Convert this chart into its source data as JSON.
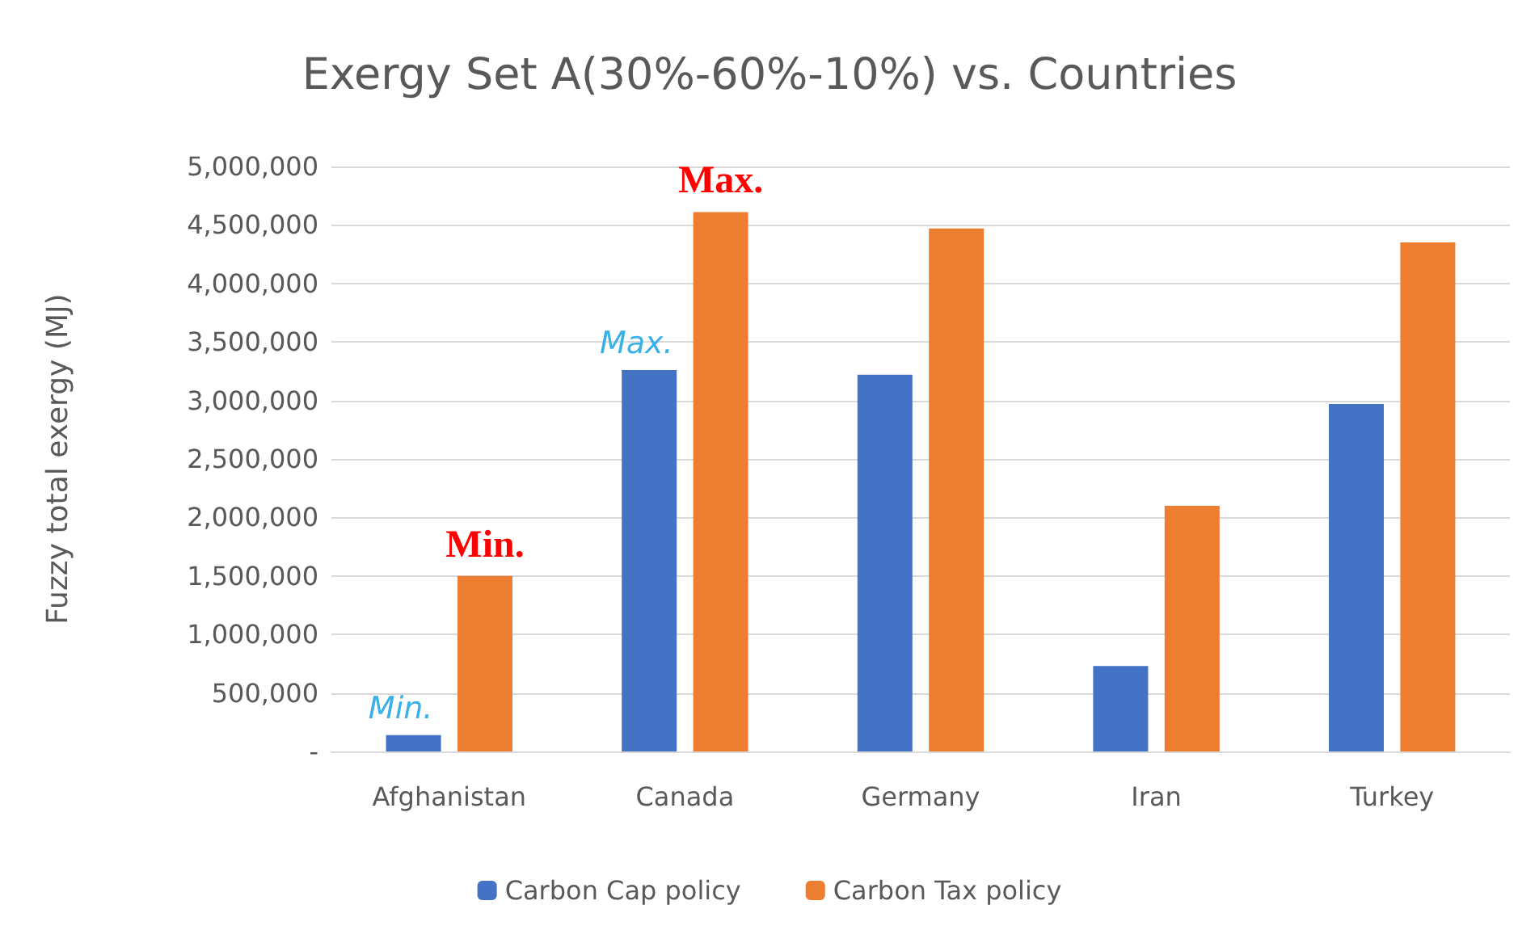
{
  "chart_data": {
    "type": "bar",
    "title": "Exergy Set A(30%-60%-10%) vs. Countries",
    "ylabel": "Fuzzy total exergy (MJ)",
    "categories": [
      "Afghanistan",
      "Canada",
      "Germany",
      "Iran",
      "Turkey"
    ],
    "series": [
      {
        "name": "Carbon Cap policy",
        "color": "#4472c4",
        "values": [
          140000,
          3260000,
          3220000,
          730000,
          2970000
        ]
      },
      {
        "name": "Carbon Tax policy",
        "color": "#ed7d31",
        "values": [
          1500000,
          4610000,
          4470000,
          2100000,
          4350000
        ]
      }
    ],
    "ylim": [
      0,
      5000000
    ],
    "yticks": [
      {
        "value": 0,
        "label": "-"
      },
      {
        "value": 500000,
        "label": "500,000"
      },
      {
        "value": 1000000,
        "label": "1,000,000"
      },
      {
        "value": 1500000,
        "label": "1,500,000"
      },
      {
        "value": 2000000,
        "label": "2,000,000"
      },
      {
        "value": 2500000,
        "label": "2,500,000"
      },
      {
        "value": 3000000,
        "label": "3,000,000"
      },
      {
        "value": 3500000,
        "label": "3,500,000"
      },
      {
        "value": 4000000,
        "label": "4,000,000"
      },
      {
        "value": 4500000,
        "label": "4,500,000"
      },
      {
        "value": 5000000,
        "label": "5,000,000"
      }
    ],
    "grid": "y",
    "legend": "bottom",
    "annotations": [
      "Min.",
      "Min.",
      "Max.",
      "Max."
    ]
  }
}
